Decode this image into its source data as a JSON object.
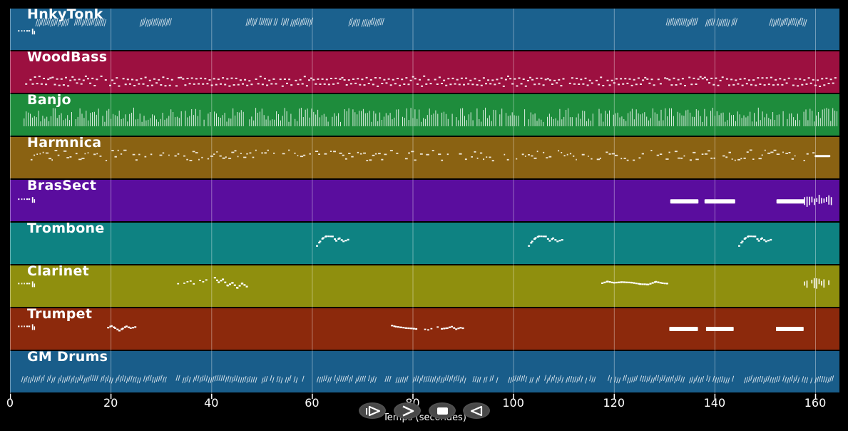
{
  "style": {
    "background": "#000000",
    "grid_color": "rgba(255,255,255,0.38)",
    "note_color": "#ffffff",
    "button_bg": "#484848",
    "text_color": "#ffffff"
  },
  "axis": {
    "label": "Temps (secondes)",
    "ticks": [
      "0",
      "20",
      "40",
      "60",
      "80",
      "100",
      "120",
      "140",
      "160"
    ],
    "tick_seconds": [
      0,
      20,
      40,
      60,
      80,
      100,
      120,
      140,
      160
    ],
    "xmax_seconds": 164.8
  },
  "transport": {
    "buttons": [
      {
        "id": "play",
        "label": "play"
      },
      {
        "id": "forward",
        "label": "fast-forward"
      },
      {
        "id": "stop",
        "label": "stop"
      },
      {
        "id": "rewind",
        "label": "rewind"
      }
    ]
  },
  "tracks": [
    {
      "name": "HnkyTonk",
      "color": "#1b618e",
      "clusters": [
        {
          "t": "countin",
          "s": 1.6,
          "e": 5.2,
          "y": 0.52,
          "h": 8
        },
        {
          "t": "hatch",
          "s": 5.1,
          "e": 11.5,
          "y": 0.33,
          "h": 10
        },
        {
          "t": "hatch",
          "s": 12.8,
          "e": 18.7,
          "y": 0.33,
          "h": 10
        },
        {
          "t": "hatch",
          "s": 25.8,
          "e": 32.0,
          "y": 0.33,
          "h": 10
        },
        {
          "t": "hatch",
          "s": 46.9,
          "e": 52.9,
          "y": 0.33,
          "h": 10
        },
        {
          "t": "hatch",
          "s": 53.9,
          "e": 59.8,
          "y": 0.33,
          "h": 10
        },
        {
          "t": "hatch",
          "s": 67.3,
          "e": 74.0,
          "y": 0.33,
          "h": 10
        },
        {
          "t": "hatch",
          "s": 130.4,
          "e": 136.3,
          "y": 0.33,
          "h": 10
        },
        {
          "t": "hatch",
          "s": 138.2,
          "e": 144.1,
          "y": 0.33,
          "h": 10
        },
        {
          "t": "hatch",
          "s": 150.9,
          "e": 158.0,
          "y": 0.33,
          "h": 10
        }
      ]
    },
    {
      "name": "WoodBass",
      "color": "#9c1040",
      "clusters": [
        {
          "t": "wave",
          "s": 3.0,
          "e": 164.2,
          "y": 0.72,
          "h": 12
        }
      ]
    },
    {
      "name": "Banjo",
      "color": "#1e8c3c",
      "clusters": [
        {
          "t": "comb",
          "s": 2.8,
          "e": 164.6,
          "y": 0.55,
          "h": 26
        }
      ]
    },
    {
      "name": "Harmnica",
      "color": "#8a6212",
      "clusters": [
        {
          "t": "specks",
          "s": 3.5,
          "e": 159.8,
          "y": 0.43,
          "h": 15
        },
        {
          "t": "bar",
          "s": 159.9,
          "e": 163.0,
          "y": 0.46,
          "h": 3
        }
      ]
    },
    {
      "name": "BrasSect",
      "color": "#5a0d9e",
      "clusters": [
        {
          "t": "countin",
          "s": 1.6,
          "e": 5.2,
          "y": 0.45,
          "h": 8
        },
        {
          "t": "bar",
          "s": 131.2,
          "e": 136.8,
          "y": 0.52,
          "h": 6
        },
        {
          "t": "bar",
          "s": 138.0,
          "e": 144.1,
          "y": 0.52,
          "h": 6
        },
        {
          "t": "bar",
          "s": 152.3,
          "e": 157.8,
          "y": 0.52,
          "h": 6
        },
        {
          "t": "sticks",
          "s": 157.9,
          "e": 163.6,
          "y": 0.5,
          "h": 15
        }
      ]
    },
    {
      "name": "Trombone",
      "color": "#0e8282",
      "clusters": [
        {
          "t": "melody",
          "s": 60.8,
          "e": 67.0,
          "y": 0.42,
          "h": 16,
          "pts": [
            [
              0,
              0.95
            ],
            [
              0.1,
              0.55
            ],
            [
              0.2,
              0.25
            ],
            [
              0.3,
              0.1
            ],
            [
              0.5,
              0.12
            ],
            [
              0.62,
              0.5
            ],
            [
              0.72,
              0.28
            ],
            [
              0.85,
              0.55
            ],
            [
              1,
              0.4
            ]
          ]
        },
        {
          "t": "melody",
          "s": 102.9,
          "e": 109.6,
          "y": 0.42,
          "h": 16,
          "pts": [
            [
              0,
              0.95
            ],
            [
              0.1,
              0.55
            ],
            [
              0.2,
              0.25
            ],
            [
              0.3,
              0.1
            ],
            [
              0.5,
              0.12
            ],
            [
              0.62,
              0.5
            ],
            [
              0.72,
              0.28
            ],
            [
              0.85,
              0.55
            ],
            [
              1,
              0.4
            ]
          ]
        },
        {
          "t": "melody",
          "s": 144.7,
          "e": 151.0,
          "y": 0.42,
          "h": 16,
          "pts": [
            [
              0,
              0.95
            ],
            [
              0.1,
              0.55
            ],
            [
              0.2,
              0.25
            ],
            [
              0.3,
              0.1
            ],
            [
              0.5,
              0.12
            ],
            [
              0.62,
              0.5
            ],
            [
              0.72,
              0.28
            ],
            [
              0.85,
              0.55
            ],
            [
              1,
              0.4
            ]
          ]
        }
      ]
    },
    {
      "name": "Clarinet",
      "color": "#8f8f0e",
      "clusters": [
        {
          "t": "countin",
          "s": 1.6,
          "e": 5.2,
          "y": 0.42,
          "h": 8
        },
        {
          "t": "dashes",
          "s": 33.2,
          "e": 39.0,
          "y": 0.38,
          "h": 6
        },
        {
          "t": "melody",
          "s": 40.5,
          "e": 46.9,
          "y": 0.4,
          "h": 16,
          "pts": [
            [
              0,
              0.05
            ],
            [
              0.12,
              0.45
            ],
            [
              0.25,
              0.2
            ],
            [
              0.4,
              0.75
            ],
            [
              0.55,
              0.5
            ],
            [
              0.7,
              0.95
            ],
            [
              0.85,
              0.55
            ],
            [
              1,
              0.85
            ]
          ]
        },
        {
          "t": "melody",
          "s": 117.5,
          "e": 130.5,
          "y": 0.4,
          "h": 12,
          "pts": [
            [
              0,
              0.55
            ],
            [
              0.08,
              0.35
            ],
            [
              0.18,
              0.5
            ],
            [
              0.3,
              0.42
            ],
            [
              0.45,
              0.48
            ],
            [
              0.58,
              0.65
            ],
            [
              0.7,
              0.7
            ],
            [
              0.82,
              0.38
            ],
            [
              0.92,
              0.55
            ],
            [
              1,
              0.6
            ]
          ]
        },
        {
          "t": "sticks",
          "s": 157.4,
          "e": 162.8,
          "y": 0.42,
          "h": 15
        }
      ]
    },
    {
      "name": "Trumpet",
      "color": "#8c290c",
      "clusters": [
        {
          "t": "countin",
          "s": 1.6,
          "e": 5.2,
          "y": 0.42,
          "h": 8
        },
        {
          "t": "melody",
          "s": 19.3,
          "e": 24.9,
          "y": 0.46,
          "h": 12,
          "pts": [
            [
              0,
              0.45
            ],
            [
              0.12,
              0.25
            ],
            [
              0.25,
              0.5
            ],
            [
              0.4,
              0.8
            ],
            [
              0.52,
              0.55
            ],
            [
              0.65,
              0.3
            ],
            [
              0.8,
              0.5
            ],
            [
              1,
              0.35
            ]
          ]
        },
        {
          "t": "melody",
          "s": 75.7,
          "e": 80.9,
          "y": 0.46,
          "h": 10,
          "pts": [
            [
              0,
              0.15
            ],
            [
              0.15,
              0.3
            ],
            [
              0.35,
              0.4
            ],
            [
              0.55,
              0.5
            ],
            [
              0.75,
              0.55
            ],
            [
              1,
              0.65
            ]
          ]
        },
        {
          "t": "dashes",
          "s": 82.3,
          "e": 84.9,
          "y": 0.48,
          "h": 5
        },
        {
          "t": "melody",
          "s": 85.6,
          "e": 90.0,
          "y": 0.46,
          "h": 10,
          "pts": [
            [
              0,
              0.6
            ],
            [
              0.25,
              0.5
            ],
            [
              0.45,
              0.3
            ],
            [
              0.65,
              0.65
            ],
            [
              0.85,
              0.45
            ],
            [
              1,
              0.55
            ]
          ]
        },
        {
          "t": "bar",
          "s": 131.0,
          "e": 136.7,
          "y": 0.5,
          "h": 6
        },
        {
          "t": "bar",
          "s": 138.3,
          "e": 143.8,
          "y": 0.5,
          "h": 6
        },
        {
          "t": "bar",
          "s": 152.2,
          "e": 157.7,
          "y": 0.5,
          "h": 6
        }
      ]
    },
    {
      "name": "GM Drums",
      "color": "#195d8a",
      "clusters": [
        {
          "t": "drums",
          "s": 2.3,
          "e": 31.0,
          "y": 0.68,
          "h": 10
        },
        {
          "t": "drums",
          "s": 33.0,
          "e": 58.5,
          "y": 0.68,
          "h": 10
        },
        {
          "t": "drums",
          "s": 61.0,
          "e": 72.6,
          "y": 0.68,
          "h": 10
        },
        {
          "t": "drums",
          "s": 74.1,
          "e": 96.7,
          "y": 0.68,
          "h": 10
        },
        {
          "t": "drums",
          "s": 99.0,
          "e": 116.4,
          "y": 0.68,
          "h": 10
        },
        {
          "t": "drums",
          "s": 118.4,
          "e": 143.6,
          "y": 0.68,
          "h": 10
        },
        {
          "t": "drums",
          "s": 145.9,
          "e": 163.7,
          "y": 0.68,
          "h": 10
        }
      ]
    }
  ]
}
